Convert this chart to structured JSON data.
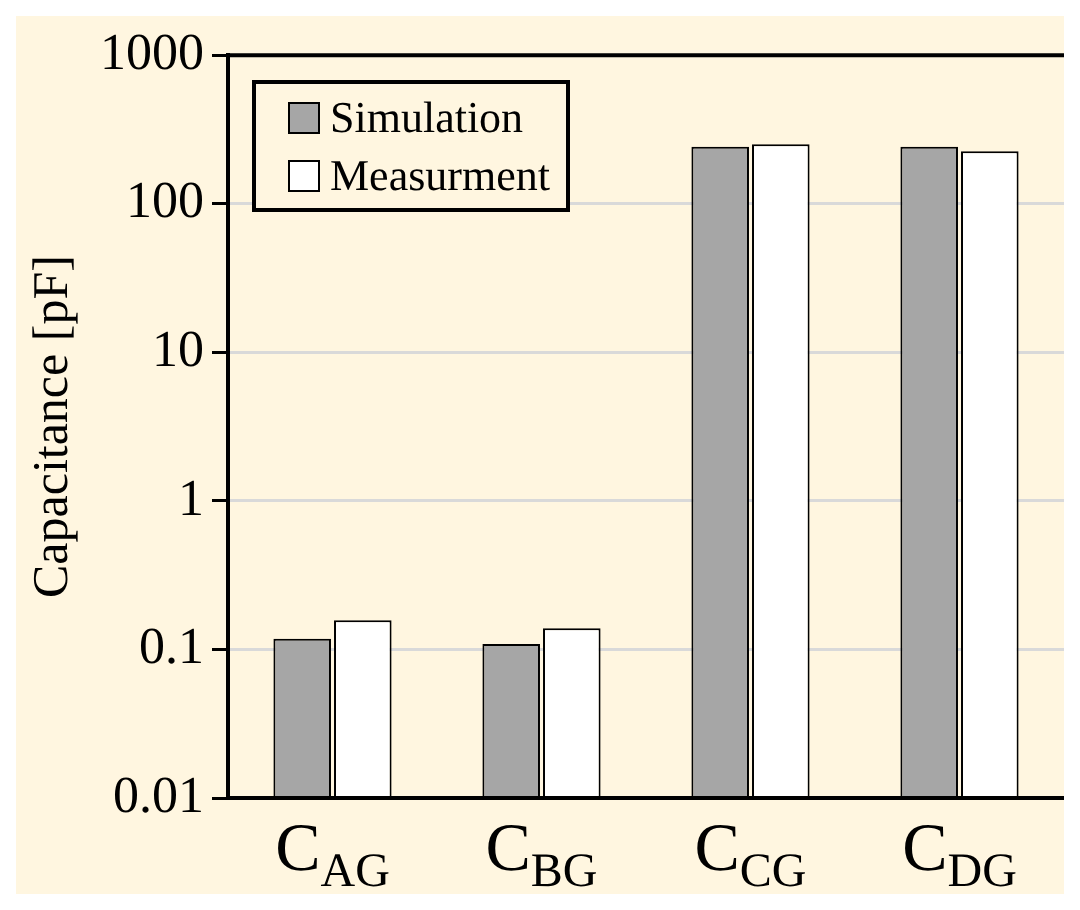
{
  "chart_data": {
    "type": "bar",
    "ylabel": "Capacitance [pF]",
    "categories": [
      "C$_{AG}$",
      "C$_{BG}$",
      "C$_{CG}$",
      "C$_{DG}$"
    ],
    "series": [
      {
        "name": "Simulation",
        "color": "#a6a6a6",
        "values": [
          0.118,
          0.109,
          242,
          242
        ]
      },
      {
        "name": "Measurment",
        "color": "#ffffff",
        "values": [
          0.157,
          0.139,
          252,
          226
        ]
      }
    ],
    "log": "y",
    "ylim": [
      0.01,
      1000
    ],
    "yticks": [
      0.01,
      0.1,
      1,
      10,
      100,
      1000
    ],
    "grid": "y",
    "legend": "top left"
  }
}
